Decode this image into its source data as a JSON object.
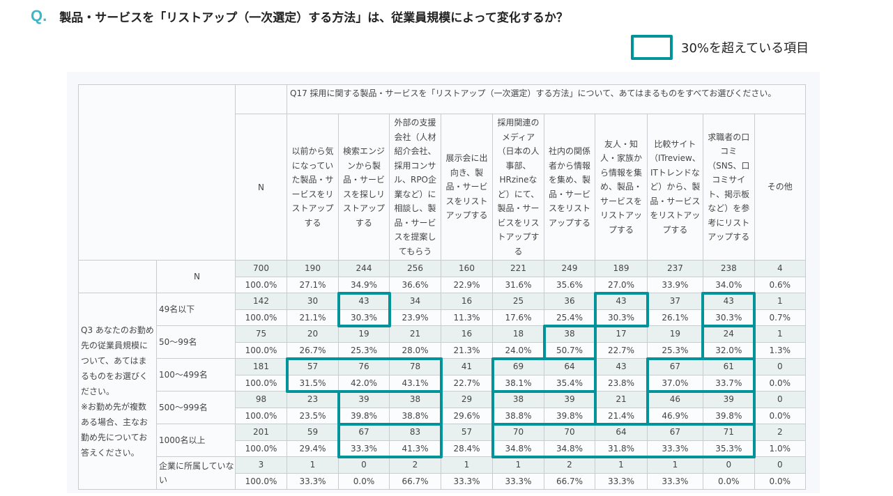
{
  "header": {
    "q_mark": "Q.",
    "title": "製品・サービスを「リストアップ（一次選定）する方法」は、従業員規模によって変化するか？"
  },
  "legend": {
    "label": "30%を超えている項目",
    "color": "#00949a"
  },
  "table": {
    "question": "Q17 採用に関する製品・サービスを「リストアップ（一次選定）する方法」について、あてはまるものをすべてお選びください。",
    "n_label": "N",
    "columns": [
      "以前から気になっていた製品・サービスをリストアップする",
      "検索エンジンから製品・サービスを探しリストアップする",
      "外部の支援会社（人材紹介会社、採用コンサル、RPO企業など）に相談し、製品・サービスを提案してもらう",
      "展示会に出向き、製品・サービスをリストアップする",
      "採用関連のメディア（日本の人事部、HRzineなど）にて、製品・サービスをリストアップする",
      "社内の関係者から情報を集め、製品・サービスをリストアップする",
      "友人・知人・家族から情報を集め、製品・サービスをリストアップする",
      "比較サイト（ITreview、ITトレンドなど）から、製品・サービスをリストアップする",
      "求職者の口コミ（SNS、口コミサイト、掲示板など）を参考にリストアップする",
      "その他"
    ],
    "total": {
      "label": "N",
      "counts": [
        "700",
        "190",
        "244",
        "256",
        "160",
        "221",
        "249",
        "189",
        "237",
        "238",
        "4"
      ],
      "pcts": [
        "100.0%",
        "27.1%",
        "34.9%",
        "36.6%",
        "22.9%",
        "31.6%",
        "35.6%",
        "27.0%",
        "33.9%",
        "34.0%",
        "0.6%"
      ]
    },
    "group_label": "Q3 あなたのお勤め先の従業員規模について、あてはまるものをお選びください。\n※お勤め先が複数ある場合、主なお勤め先についてお答えください。",
    "rows": [
      {
        "label": "49名以下",
        "counts": [
          "142",
          "30",
          "43",
          "34",
          "16",
          "25",
          "36",
          "43",
          "37",
          "43",
          "1"
        ],
        "pcts": [
          "100.0%",
          "21.1%",
          "30.3%",
          "23.9%",
          "11.3%",
          "17.6%",
          "25.4%",
          "30.3%",
          "26.1%",
          "30.3%",
          "0.7%"
        ]
      },
      {
        "label": "50〜99名",
        "counts": [
          "75",
          "20",
          "19",
          "21",
          "16",
          "18",
          "38",
          "17",
          "19",
          "24",
          "1"
        ],
        "pcts": [
          "100.0%",
          "26.7%",
          "25.3%",
          "28.0%",
          "21.3%",
          "24.0%",
          "50.7%",
          "22.7%",
          "25.3%",
          "32.0%",
          "1.3%"
        ]
      },
      {
        "label": "100〜499名",
        "counts": [
          "181",
          "57",
          "76",
          "78",
          "41",
          "69",
          "64",
          "43",
          "67",
          "61",
          "0"
        ],
        "pcts": [
          "100.0%",
          "31.5%",
          "42.0%",
          "43.1%",
          "22.7%",
          "38.1%",
          "35.4%",
          "23.8%",
          "37.0%",
          "33.7%",
          "0.0%"
        ]
      },
      {
        "label": "500〜999名",
        "counts": [
          "98",
          "23",
          "39",
          "38",
          "29",
          "38",
          "39",
          "21",
          "46",
          "39",
          "0"
        ],
        "pcts": [
          "100.0%",
          "23.5%",
          "39.8%",
          "38.8%",
          "29.6%",
          "38.8%",
          "39.8%",
          "21.4%",
          "46.9%",
          "39.8%",
          "0.0%"
        ]
      },
      {
        "label": "1000名以上",
        "counts": [
          "201",
          "59",
          "67",
          "83",
          "57",
          "70",
          "70",
          "64",
          "67",
          "71",
          "2"
        ],
        "pcts": [
          "100.0%",
          "29.4%",
          "33.3%",
          "41.3%",
          "28.4%",
          "34.8%",
          "34.8%",
          "31.8%",
          "33.3%",
          "35.3%",
          "1.0%"
        ]
      },
      {
        "label": "企業に所属していない",
        "counts": [
          "3",
          "1",
          "0",
          "2",
          "1",
          "1",
          "2",
          "1",
          "1",
          "0",
          "0"
        ],
        "pcts": [
          "100.0%",
          "33.3%",
          "0.0%",
          "66.7%",
          "33.3%",
          "33.3%",
          "66.7%",
          "33.3%",
          "33.3%",
          "0.0%",
          "0.0%"
        ]
      }
    ],
    "highlight_groups": [
      {
        "row_from": 0,
        "row_to": 0,
        "col_from": 2,
        "col_to": 2
      },
      {
        "row_from": 0,
        "row_to": 0,
        "col_from": 7,
        "col_to": 7
      },
      {
        "row_from": 0,
        "row_to": 0,
        "col_from": 9,
        "col_to": 9
      },
      {
        "row_from": 1,
        "row_to": 1,
        "col_from": 6,
        "col_to": 6
      },
      {
        "row_from": 1,
        "row_to": 1,
        "col_from": 9,
        "col_to": 9
      },
      {
        "row_from": 2,
        "row_to": 2,
        "col_from": 1,
        "col_to": 3
      },
      {
        "row_from": 2,
        "row_to": 2,
        "col_from": 5,
        "col_to": 6
      },
      {
        "row_from": 2,
        "row_to": 2,
        "col_from": 8,
        "col_to": 9
      },
      {
        "row_from": 3,
        "row_to": 3,
        "col_from": 2,
        "col_to": 3
      },
      {
        "row_from": 3,
        "row_to": 3,
        "col_from": 5,
        "col_to": 6
      },
      {
        "row_from": 3,
        "row_to": 3,
        "col_from": 8,
        "col_to": 9
      },
      {
        "row_from": 4,
        "row_to": 4,
        "col_from": 2,
        "col_to": 3
      },
      {
        "row_from": 4,
        "row_to": 4,
        "col_from": 5,
        "col_to": 9
      }
    ]
  }
}
